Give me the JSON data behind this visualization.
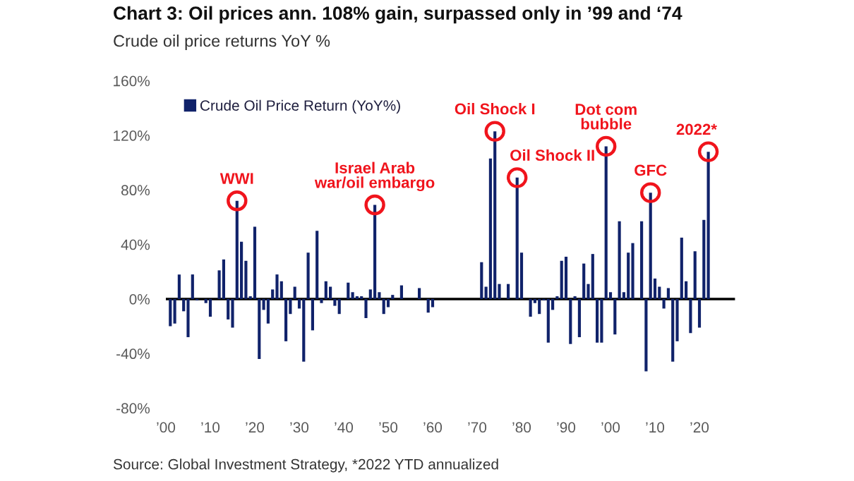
{
  "chart_data": {
    "type": "bar",
    "title": "Chart 3: Oil prices ann. 108% gain, surpassed only in ’99 and ‘74",
    "subtitle": "Crude oil price returns YoY %",
    "x": [
      1901,
      1902,
      1903,
      1904,
      1905,
      1906,
      1907,
      1908,
      1909,
      1910,
      1911,
      1912,
      1913,
      1914,
      1915,
      1916,
      1917,
      1918,
      1919,
      1920,
      1921,
      1922,
      1923,
      1924,
      1925,
      1926,
      1927,
      1928,
      1929,
      1930,
      1931,
      1932,
      1933,
      1934,
      1935,
      1936,
      1937,
      1938,
      1939,
      1940,
      1941,
      1942,
      1943,
      1944,
      1945,
      1946,
      1947,
      1948,
      1949,
      1950,
      1951,
      1952,
      1953,
      1954,
      1955,
      1956,
      1957,
      1958,
      1959,
      1960,
      1961,
      1962,
      1963,
      1964,
      1965,
      1966,
      1967,
      1968,
      1969,
      1970,
      1971,
      1972,
      1973,
      1974,
      1975,
      1976,
      1977,
      1978,
      1979,
      1980,
      1981,
      1982,
      1983,
      1984,
      1985,
      1986,
      1987,
      1988,
      1989,
      1990,
      1991,
      1992,
      1993,
      1994,
      1995,
      1996,
      1997,
      1998,
      1999,
      2000,
      2001,
      2002,
      2003,
      2004,
      2005,
      2006,
      2007,
      2008,
      2009,
      2010,
      2011,
      2012,
      2013,
      2014,
      2015,
      2016,
      2017,
      2018,
      2019,
      2020,
      2021,
      2022
    ],
    "series": [
      {
        "name": "Crude Oil Price Return (YoY%)",
        "color": "#10226a",
        "values": [
          -20,
          -18,
          18,
          -9,
          -28,
          18,
          -1,
          0,
          -3,
          -13,
          0,
          21,
          29,
          -15,
          -21,
          72,
          42,
          28,
          2,
          53,
          -44,
          -8,
          -18,
          7,
          18,
          13,
          -31,
          -11,
          9,
          -7,
          -46,
          34,
          -23,
          50,
          -3,
          13,
          9,
          -5,
          -11,
          0,
          12,
          5,
          2,
          2,
          -14,
          7,
          69,
          5,
          -11,
          -6,
          3,
          0,
          10,
          0,
          0,
          0,
          8,
          0,
          -10,
          -6,
          0,
          0,
          0,
          0,
          0,
          0,
          0,
          0,
          0,
          0,
          27,
          9,
          103,
          123,
          11,
          0,
          11,
          0,
          89,
          34,
          0,
          -13,
          -3,
          -11,
          -1,
          -32,
          -8,
          2,
          28,
          31,
          -33,
          2,
          -28,
          26,
          11,
          33,
          -32,
          -32,
          112,
          5,
          -26,
          57,
          5,
          34,
          41,
          0,
          57,
          -53,
          78,
          15,
          9,
          -7,
          8,
          -46,
          -31,
          45,
          13,
          -25,
          35,
          -21,
          58,
          108
        ]
      }
    ],
    "xlim": [
      1900,
      2028
    ],
    "xticks": [
      {
        "value": 1900,
        "label": "’00"
      },
      {
        "value": 1910,
        "label": "’10"
      },
      {
        "value": 1920,
        "label": "’20"
      },
      {
        "value": 1930,
        "label": "’30"
      },
      {
        "value": 1940,
        "label": "’40"
      },
      {
        "value": 1950,
        "label": "’50"
      },
      {
        "value": 1960,
        "label": "’60"
      },
      {
        "value": 1970,
        "label": "’70"
      },
      {
        "value": 1980,
        "label": "’80"
      },
      {
        "value": 1990,
        "label": "’90"
      },
      {
        "value": 2000,
        "label": "’00"
      },
      {
        "value": 2010,
        "label": "’10"
      },
      {
        "value": 2020,
        "label": "’20"
      }
    ],
    "ylim": [
      -80,
      160
    ],
    "yticks": [
      {
        "value": -80,
        "label": "-80%"
      },
      {
        "value": -40,
        "label": "-40%"
      },
      {
        "value": 0,
        "label": "0%"
      },
      {
        "value": 40,
        "label": "40%"
      },
      {
        "value": 80,
        "label": "80%"
      },
      {
        "value": 120,
        "label": "120%"
      },
      {
        "value": 160,
        "label": "160%"
      }
    ],
    "legend": "top left",
    "ref_lines": [
      {
        "axis": "y",
        "value": 0,
        "color": "#000000"
      }
    ],
    "annotations": [
      {
        "text": "WWI",
        "x": 1916,
        "y": 72
      },
      {
        "text": "Israel Arab\nwar/oil embargo",
        "x": 1947,
        "y": 69
      },
      {
        "text": "Oil Shock I",
        "x": 1974,
        "y": 123
      },
      {
        "text": "Oil Shock II",
        "x": 1979,
        "y": 89
      },
      {
        "text": "Dot com\nbubble",
        "x": 1999,
        "y": 112
      },
      {
        "text": "GFC",
        "x": 2009,
        "y": 78
      },
      {
        "text": "2022*",
        "x": 2022,
        "y": 108
      },
      "Source: Global Investment Strategy, *2022 YTD annualized"
    ]
  }
}
